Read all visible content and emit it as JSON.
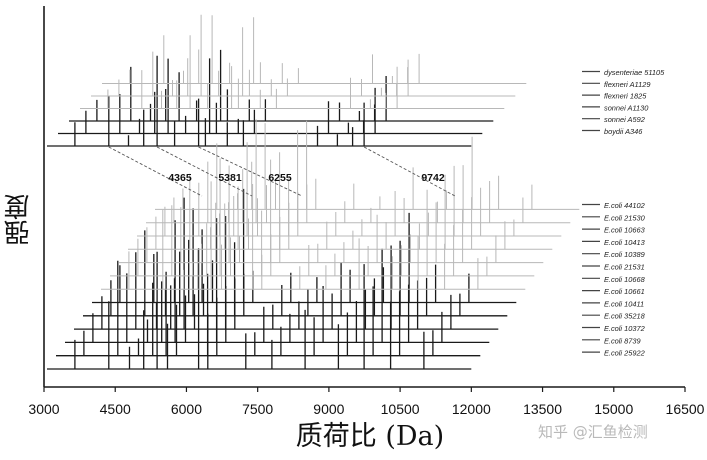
{
  "chart_data": {
    "type": "line",
    "subtype": "stacked-spectra",
    "xlabel": "质荷比 (Da)",
    "ylabel": "强度",
    "xlim": [
      3000,
      16500
    ],
    "x_ticks": [
      "3000",
      "4500",
      "6000",
      "7500",
      "9000",
      "10500",
      "12000",
      "13500",
      "15000",
      "16500"
    ],
    "grid": false,
    "legend_placement": "right",
    "series_colors": {
      "primary": "#1a1a1a",
      "faded": "#b8b8b8"
    },
    "marker_peaks": [
      {
        "label": "4365",
        "x": 4365
      },
      {
        "label": "5381",
        "x": 5381
      },
      {
        "label": "6255",
        "x": 6255
      },
      {
        "label": "9742",
        "x": 9742
      }
    ],
    "groups": [
      {
        "id": "shigella",
        "x_max": 12000,
        "peaks": [
          {
            "x": 3650,
            "h": 0.25
          },
          {
            "x": 4365,
            "h": 0.6
          },
          {
            "x": 4780,
            "h": 0.2
          },
          {
            "x": 5100,
            "h": 0.45
          },
          {
            "x": 5381,
            "h": 0.95
          },
          {
            "x": 5750,
            "h": 0.3
          },
          {
            "x": 6255,
            "h": 0.85
          },
          {
            "x": 6400,
            "h": 0.35
          },
          {
            "x": 6860,
            "h": 0.25
          },
          {
            "x": 7200,
            "h": 0.3
          },
          {
            "x": 8760,
            "h": 0.35
          },
          {
            "x": 9180,
            "h": 0.15
          },
          {
            "x": 9500,
            "h": 0.2
          },
          {
            "x": 9742,
            "h": 0.5
          }
        ],
        "series": [
          {
            "name": "dysenteriae 51105"
          },
          {
            "name": "flexneri A1129"
          },
          {
            "name": "flexneri 1825"
          },
          {
            "name": "sonnei A1130"
          },
          {
            "name": "sonnei A592"
          },
          {
            "name": "boydii A346"
          }
        ]
      },
      {
        "id": "ecoli",
        "x_max": 12000,
        "peaks": [
          {
            "x": 3650,
            "h": 0.3
          },
          {
            "x": 4365,
            "h": 0.65
          },
          {
            "x": 4800,
            "h": 0.2
          },
          {
            "x": 5100,
            "h": 0.5
          },
          {
            "x": 5381,
            "h": 0.95
          },
          {
            "x": 5600,
            "h": 0.35
          },
          {
            "x": 6255,
            "h": 0.9
          },
          {
            "x": 6450,
            "h": 0.4
          },
          {
            "x": 7250,
            "h": 0.25
          },
          {
            "x": 7800,
            "h": 0.2
          },
          {
            "x": 8500,
            "h": 0.4
          },
          {
            "x": 9200,
            "h": 0.3
          },
          {
            "x": 9742,
            "h": 0.7
          },
          {
            "x": 10300,
            "h": 0.45
          },
          {
            "x": 11000,
            "h": 0.25
          }
        ],
        "series": [
          {
            "name": "E.coli 44102"
          },
          {
            "name": "E.coli 21530"
          },
          {
            "name": "E.coli 10663"
          },
          {
            "name": "E.coli 10413"
          },
          {
            "name": "E.coli 10389"
          },
          {
            "name": "E.coli 21531"
          },
          {
            "name": "E.coli 10668"
          },
          {
            "name": "E.coli 10661"
          },
          {
            "name": "E.coli 10411"
          },
          {
            "name": "E.coli 35218"
          },
          {
            "name": "E.coli 10372"
          },
          {
            "name": "E.coli 8739"
          },
          {
            "name": "E.coli 25922"
          }
        ]
      }
    ]
  },
  "watermark": "知乎 @汇鱼检测"
}
